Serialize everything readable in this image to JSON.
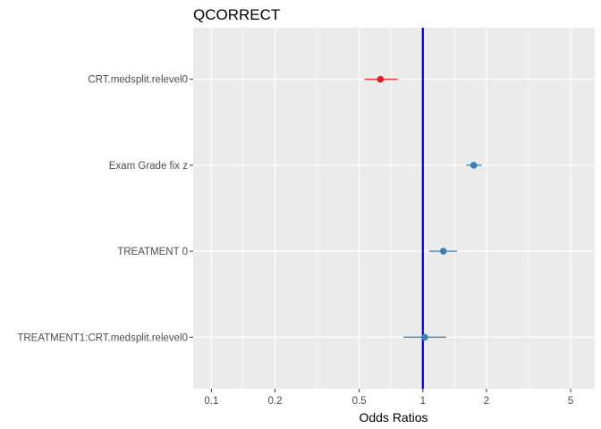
{
  "chart_data": {
    "type": "scatter",
    "subtype": "forest-plot",
    "title": "QCORRECT",
    "xlabel": "Odds Ratios",
    "ylabel": "",
    "x_scale": "log10",
    "xlim": [
      0.082,
      6.5
    ],
    "x_ticks": [
      0.1,
      0.2,
      0.5,
      1,
      2,
      5
    ],
    "x_tick_labels": [
      "0.1",
      "0.2",
      "0.5",
      "1",
      "2",
      "5"
    ],
    "x_minor_ticks": [
      0.141,
      0.316,
      0.707,
      1.414,
      3.162
    ],
    "reference_line": {
      "x": 1,
      "color": "#0000cd"
    },
    "grid": true,
    "panel_background": "#ebebeb",
    "categories": [
      "CRT.medsplit.relevel0",
      "Exam Grade fix z",
      "TREATMENT 0",
      "TREATMENT1:CRT.medsplit.relevel0"
    ],
    "points": [
      {
        "term": "CRT.medsplit.relevel0",
        "estimate": 0.63,
        "ci_low": 0.53,
        "ci_high": 0.76,
        "color": "#e41a1c"
      },
      {
        "term": "Exam Grade fix z",
        "estimate": 1.74,
        "ci_low": 1.6,
        "ci_high": 1.9,
        "color": "#377eb8"
      },
      {
        "term": "TREATMENT 0",
        "estimate": 1.25,
        "ci_low": 1.07,
        "ci_high": 1.45,
        "color": "#377eb8"
      },
      {
        "term": "TREATMENT1:CRT.medsplit.relevel0",
        "estimate": 1.02,
        "ci_low": 0.81,
        "ci_high": 1.29,
        "color": "#377eb8"
      }
    ]
  }
}
